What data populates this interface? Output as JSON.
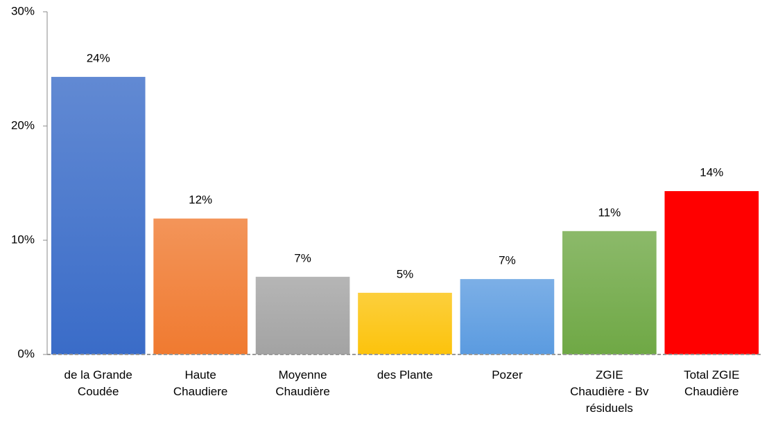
{
  "chart_data": {
    "type": "bar",
    "categories": [
      "de la Grande\nCoudée",
      "Haute\nChaudiere",
      "Moyenne\nChaudière",
      "des Plante",
      "Pozer",
      "ZGIE\nChaudière - Bv\nrésiduels",
      "Total ZGIE\nChaudière"
    ],
    "values": [
      24.3,
      11.9,
      6.8,
      5.4,
      6.6,
      10.8,
      14.3
    ],
    "value_labels": [
      "24%",
      "12%",
      "7%",
      "5%",
      "7%",
      "11%",
      "14%"
    ],
    "colors": [
      "#3a6cc8",
      "#f07a30",
      "#a3a3a3",
      "#fcc30c",
      "#5b9be0",
      "#6fa845",
      "#ff0000"
    ],
    "ylim": [
      0,
      30
    ],
    "yticks": [
      {
        "value": 0,
        "label": "0%"
      },
      {
        "value": 10,
        "label": "10%"
      },
      {
        "value": 20,
        "label": "20%"
      },
      {
        "value": 30,
        "label": "30%"
      }
    ],
    "grid": false
  }
}
